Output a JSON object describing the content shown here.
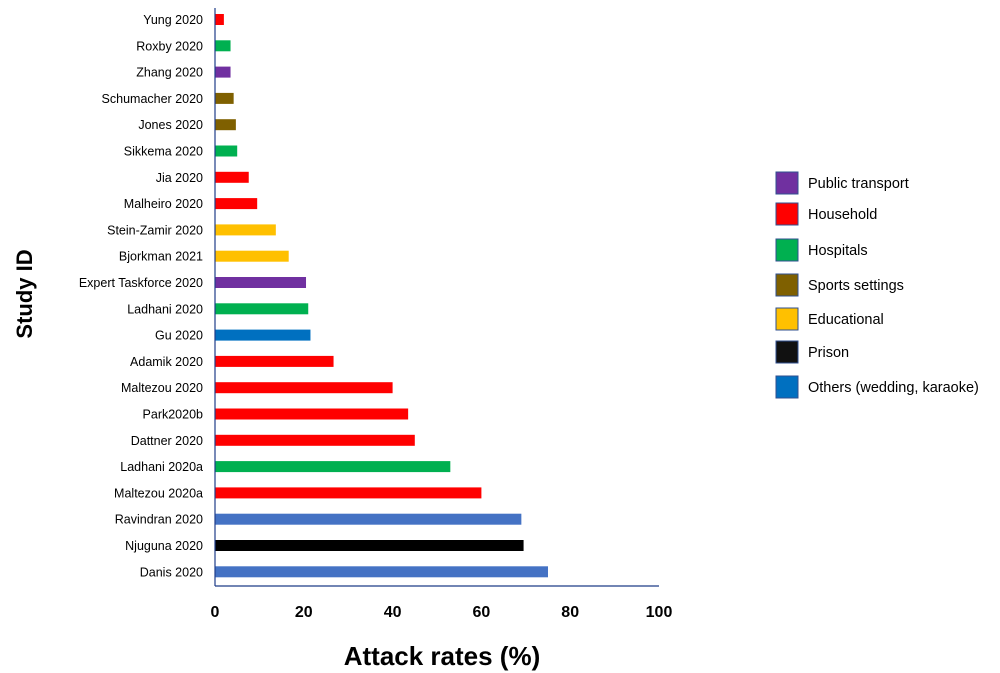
{
  "chart_data": {
    "type": "bar",
    "orientation": "horizontal",
    "xlabel": "Attack rates (%)",
    "ylabel": "Study ID",
    "xlim": [
      0,
      100
    ],
    "xticks": [
      "0",
      "20",
      "40",
      "60",
      "80",
      "100"
    ],
    "grid": false,
    "legend_position": "right",
    "legend": [
      {
        "name": "Public transport",
        "color": "#7030A0"
      },
      {
        "name": "Household",
        "color": "#FF0000"
      },
      {
        "name": "Hospitals",
        "color": "#00B050"
      },
      {
        "name": "Sports settings",
        "color": "#7F6000"
      },
      {
        "name": "Educational",
        "color": "#FFC000"
      },
      {
        "name": "Prison",
        "color": "#111111"
      },
      {
        "name": "Others (wedding, karaoke)",
        "color": "#0070C0"
      }
    ],
    "bars": [
      {
        "study": "Yung 2020",
        "value": 2,
        "setting": "Household",
        "color": "#FF0000"
      },
      {
        "study": "Roxby 2020",
        "value": 3.5,
        "setting": "Hospitals",
        "color": "#00B050"
      },
      {
        "study": "Zhang 2020",
        "value": 3.5,
        "setting": "Public transport",
        "color": "#7030A0"
      },
      {
        "study": "Schumacher 2020",
        "value": 4.2,
        "setting": "Sports settings",
        "color": "#7F6000"
      },
      {
        "study": "Jones 2020",
        "value": 4.7,
        "setting": "Sports settings",
        "color": "#7F6000"
      },
      {
        "study": "Sikkema 2020",
        "value": 5,
        "setting": "Hospitals",
        "color": "#00B050"
      },
      {
        "study": "Jia 2020",
        "value": 7.6,
        "setting": "Household",
        "color": "#FF0000"
      },
      {
        "study": "Malheiro 2020",
        "value": 9.5,
        "setting": "Household",
        "color": "#FF0000"
      },
      {
        "study": "Stein-Zamir 2020",
        "value": 13.7,
        "setting": "Educational",
        "color": "#FFC000"
      },
      {
        "study": "Bjorkman 2021",
        "value": 16.6,
        "setting": "Educational",
        "color": "#FFC000"
      },
      {
        "study": "Expert Taskforce 2020",
        "value": 20.5,
        "setting": "Public transport",
        "color": "#7030A0"
      },
      {
        "study": "Ladhani 2020",
        "value": 21,
        "setting": "Hospitals",
        "color": "#00B050"
      },
      {
        "study": "Gu 2020",
        "value": 21.5,
        "setting": "Others (wedding, karaoke)",
        "color": "#0070C0"
      },
      {
        "study": "Adamik 2020",
        "value": 26.7,
        "setting": "Household",
        "color": "#FF0000"
      },
      {
        "study": "Maltezou 2020",
        "value": 40,
        "setting": "Household",
        "color": "#FF0000"
      },
      {
        "study": "Park2020b",
        "value": 43.5,
        "setting": "Household",
        "color": "#FF0000"
      },
      {
        "study": "Dattner 2020",
        "value": 45,
        "setting": "Household",
        "color": "#FF0000"
      },
      {
        "study": "Ladhani 2020a",
        "value": 53,
        "setting": "Hospitals",
        "color": "#00B050"
      },
      {
        "study": "Maltezou 2020a",
        "value": 60,
        "setting": "Household",
        "color": "#FF0000"
      },
      {
        "study": "Ravindran 2020",
        "value": 69,
        "setting": "Others (wedding, karaoke)",
        "color": "#4472C4"
      },
      {
        "study": "Njuguna 2020",
        "value": 69.5,
        "setting": "Prison",
        "color": "#000000"
      },
      {
        "study": "Danis 2020",
        "value": 75,
        "setting": "Others (wedding, karaoke)",
        "color": "#4472C4"
      }
    ]
  }
}
